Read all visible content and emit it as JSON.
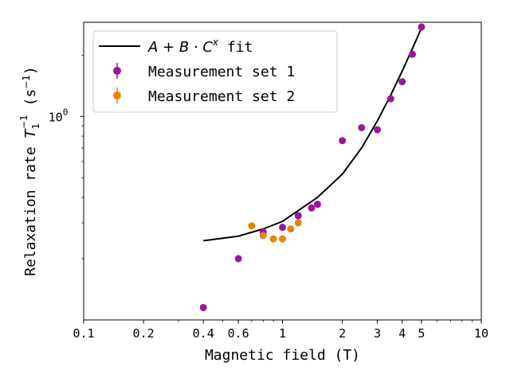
{
  "chart_data": {
    "type": "scatter",
    "title": "",
    "xlabel": "Magnetic field (T)",
    "ylabel_main": "Relaxation rate ",
    "ylabel_sym": "T",
    "ylabel_sub": "1",
    "ylabel_sup": "−1",
    "ylabel_units": " (s",
    "ylabel_units_sup": "−1",
    "ylabel_units_close": ")",
    "x_scale": "log",
    "y_scale": "log",
    "xlim": [
      0.1,
      10
    ],
    "ylim": [
      0.1,
      2.9
    ],
    "x_ticks": [
      0.1,
      0.2,
      0.4,
      0.6,
      1,
      2,
      3,
      4,
      5,
      10
    ],
    "x_tick_labels": [
      "0.1",
      "0.2",
      "0.4",
      "0.6",
      "1",
      "2",
      "3",
      "4",
      "5",
      "10"
    ],
    "y_ticks": [
      1.0
    ],
    "y_tick_base": "10",
    "y_tick_exp": "0",
    "grid": false,
    "legend_position": "top-left",
    "fit": {
      "name_math": "A + B · C",
      "name_sup": "x",
      "name_suffix": " fit",
      "color": "#000000",
      "x": [
        0.4,
        0.6,
        0.8,
        1.0,
        1.5,
        2.0,
        2.5,
        3.0,
        3.5,
        4.0,
        4.5,
        5.0
      ],
      "y": [
        0.245,
        0.258,
        0.28,
        0.305,
        0.4,
        0.52,
        0.7,
        0.95,
        1.27,
        1.67,
        2.15,
        2.72
      ]
    },
    "series": [
      {
        "name": "Measurement set 1",
        "color": "#9b169b",
        "x": [
          0.4,
          0.6,
          0.8,
          1.0,
          1.2,
          1.4,
          1.5,
          2.0,
          2.5,
          3.0,
          3.5,
          4.0,
          4.5,
          5.0
        ],
        "y": [
          0.115,
          0.2,
          0.27,
          0.285,
          0.325,
          0.355,
          0.37,
          0.76,
          0.88,
          0.86,
          1.22,
          1.48,
          2.02,
          2.75
        ]
      },
      {
        "name": "Measurement set 2",
        "color": "#e8820e",
        "x": [
          0.7,
          0.8,
          0.9,
          1.0,
          1.1,
          1.2
        ],
        "y": [
          0.29,
          0.26,
          0.25,
          0.25,
          0.28,
          0.3
        ]
      }
    ]
  }
}
